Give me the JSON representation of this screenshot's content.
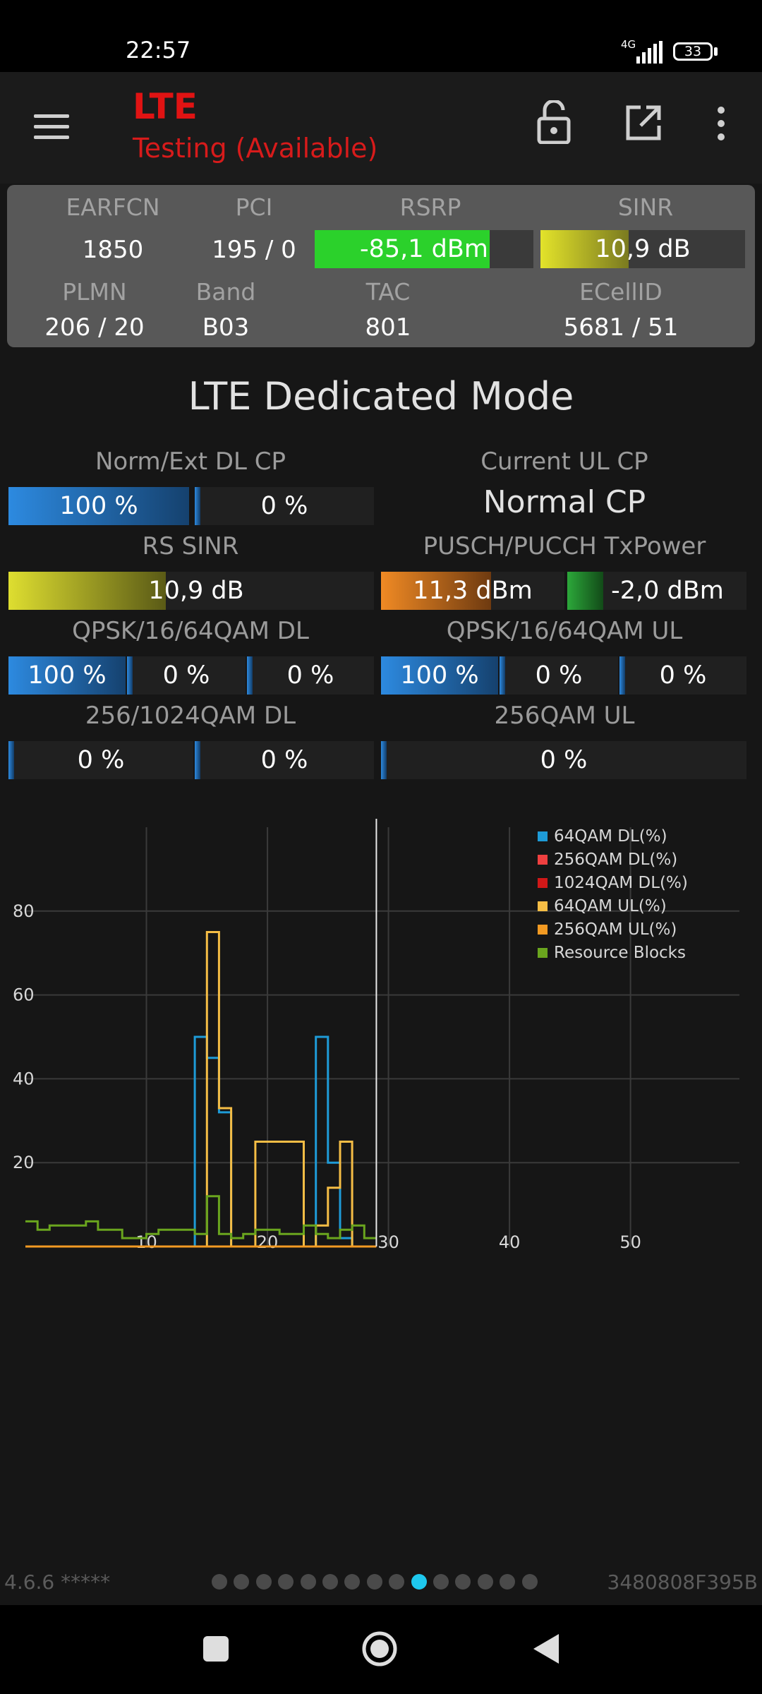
{
  "status_bar": {
    "time": "22:57",
    "network": "4G",
    "battery": "33"
  },
  "app_bar": {
    "title": "LTE",
    "subtitle": "Testing (Available)"
  },
  "cell": {
    "earfcn_label": "EARFCN",
    "earfcn": "1850",
    "pci_label": "PCI",
    "pci": "195 / 0",
    "rsrp_label": "RSRP",
    "rsrp": "-85,1 dBm",
    "rsrp_level": 0.8,
    "sinr_label": "SINR",
    "sinr": "10,9 dB",
    "sinr_level": 0.43,
    "plmn_label": "PLMN",
    "plmn": "206 / 20",
    "band_label": "Band",
    "band": "B03",
    "tac_label": "TAC",
    "tac": "801",
    "ecellid_label": "ECellID",
    "ecellid": "5681 / 51",
    "colors": {
      "rsrp": "#2bd12b",
      "sinr": "#e3e32a"
    }
  },
  "dedicated": {
    "title": "LTE Dedicated Mode",
    "dl_cp_label": "Norm/Ext DL CP",
    "dl_cp_norm": "100 %",
    "dl_cp_norm_level": 1.0,
    "dl_cp_ext": "0 %",
    "ul_cp_label": "Current UL CP",
    "ul_cp_value": "Normal CP",
    "rs_sinr_label": "RS SINR",
    "rs_sinr": "10,9 dB",
    "rs_sinr_level": 0.43,
    "txpower_label": "PUSCH/PUCCH TxPower",
    "pusch": "11,3 dBm",
    "pucch": "-2,0 dBm",
    "qam_dl_label": "QPSK/16/64QAM DL",
    "qam_dl": [
      "100 %",
      "0 %",
      "0 %"
    ],
    "qam_ul_label": "QPSK/16/64QAM UL",
    "qam_ul": [
      "100 %",
      "0 %",
      "0 %"
    ],
    "hqam_dl_label": "256/1024QAM DL",
    "hqam_dl": [
      "0 %",
      "0 %"
    ],
    "hqam_ul_label": "256QAM UL",
    "hqam_ul": [
      "0 %"
    ]
  },
  "chart_data": {
    "type": "line",
    "xlim": [
      0,
      59
    ],
    "ylim": [
      0,
      100
    ],
    "x_ticks": [
      10,
      20,
      30,
      40,
      50
    ],
    "y_ticks": [
      20,
      40,
      60,
      80
    ],
    "grid": true,
    "legend_position": "top-right",
    "cursor_x": 29,
    "series": [
      {
        "name": "64QAM DL(%)",
        "color": "#1e9bd7",
        "points": [
          [
            0,
            0
          ],
          [
            14,
            0
          ],
          [
            14,
            50
          ],
          [
            15,
            50
          ],
          [
            15,
            45
          ],
          [
            16,
            45
          ],
          [
            16,
            32
          ],
          [
            17,
            32
          ],
          [
            17,
            0
          ],
          [
            24,
            0
          ],
          [
            24,
            50
          ],
          [
            25,
            50
          ],
          [
            25,
            20
          ],
          [
            26,
            20
          ],
          [
            26,
            2
          ],
          [
            27,
            2
          ],
          [
            27,
            0
          ],
          [
            29,
            0
          ]
        ]
      },
      {
        "name": "256QAM DL(%)",
        "color": "#f04040",
        "points": [
          [
            0,
            0
          ],
          [
            29,
            0
          ]
        ]
      },
      {
        "name": "1024QAM DL(%)",
        "color": "#d01818",
        "points": [
          [
            0,
            0
          ],
          [
            29,
            0
          ]
        ]
      },
      {
        "name": "64QAM UL(%)",
        "color": "#f5bd45",
        "points": [
          [
            15,
            0
          ],
          [
            15,
            75
          ],
          [
            16,
            75
          ],
          [
            16,
            33
          ],
          [
            17,
            33
          ],
          [
            17,
            0
          ],
          [
            19,
            0
          ],
          [
            19,
            25
          ],
          [
            23,
            25
          ],
          [
            23,
            0
          ],
          [
            24,
            0
          ],
          [
            24,
            5
          ],
          [
            25,
            5
          ],
          [
            25,
            14
          ],
          [
            26,
            14
          ],
          [
            26,
            25
          ],
          [
            27,
            25
          ],
          [
            27,
            0
          ],
          [
            28,
            0
          ]
        ]
      },
      {
        "name": "256QAM UL(%)",
        "color": "#f29a22",
        "points": [
          [
            0,
            0
          ],
          [
            29,
            0
          ]
        ]
      },
      {
        "name": "Resource Blocks",
        "color": "#6aa51e",
        "points": [
          [
            0,
            6
          ],
          [
            1,
            6
          ],
          [
            1,
            4
          ],
          [
            2,
            4
          ],
          [
            2,
            5
          ],
          [
            5,
            5
          ],
          [
            5,
            6
          ],
          [
            6,
            6
          ],
          [
            6,
            4
          ],
          [
            8,
            4
          ],
          [
            8,
            2
          ],
          [
            10,
            2
          ],
          [
            10,
            3
          ],
          [
            11,
            3
          ],
          [
            11,
            4
          ],
          [
            14,
            4
          ],
          [
            14,
            3
          ],
          [
            15,
            3
          ],
          [
            15,
            12
          ],
          [
            16,
            12
          ],
          [
            16,
            3
          ],
          [
            17,
            3
          ],
          [
            17,
            2
          ],
          [
            18,
            2
          ],
          [
            18,
            3
          ],
          [
            19,
            3
          ],
          [
            19,
            4
          ],
          [
            21,
            4
          ],
          [
            21,
            3
          ],
          [
            23,
            3
          ],
          [
            23,
            5
          ],
          [
            24,
            5
          ],
          [
            24,
            3
          ],
          [
            25,
            3
          ],
          [
            25,
            2
          ],
          [
            26,
            2
          ],
          [
            26,
            4
          ],
          [
            27,
            4
          ],
          [
            27,
            5
          ],
          [
            28,
            5
          ],
          [
            28,
            2
          ],
          [
            29,
            2
          ]
        ]
      }
    ]
  },
  "footer": {
    "version": "4.6.6 *****",
    "device_id": "3480808F395B",
    "page_count": 15,
    "active_page": 10
  }
}
